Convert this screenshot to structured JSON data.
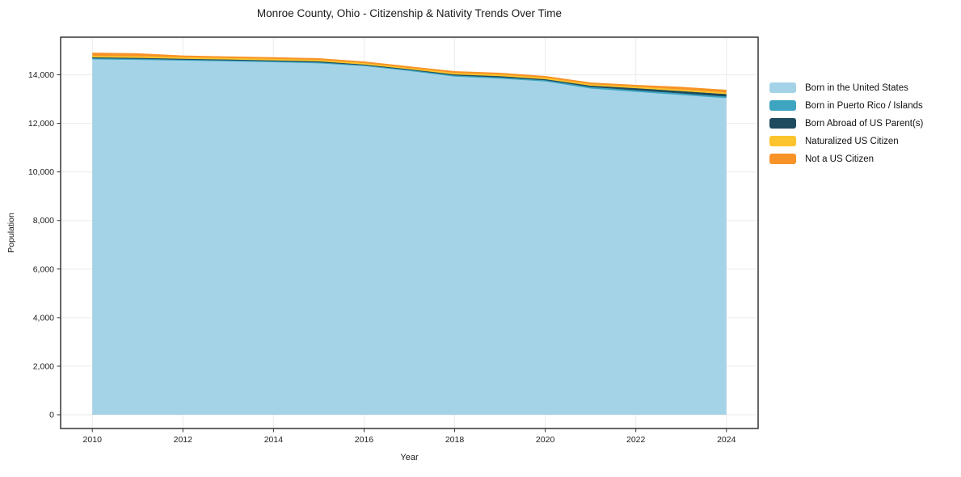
{
  "chart_data": {
    "type": "area",
    "stacked": true,
    "title": "Monroe County, Ohio - Citizenship & Nativity Trends Over Time",
    "xlabel": "Year",
    "ylabel": "Population",
    "x": [
      2010,
      2011,
      2012,
      2013,
      2014,
      2015,
      2016,
      2017,
      2018,
      2019,
      2020,
      2021,
      2022,
      2023,
      2024
    ],
    "series": [
      {
        "name": "Born in the United States",
        "color": "#a4d3e8",
        "values": [
          14660,
          14640,
          14610,
          14580,
          14545,
          14500,
          14380,
          14180,
          13950,
          13865,
          13750,
          13450,
          13315,
          13180,
          13050
        ]
      },
      {
        "name": "Born in Puerto Rico / Islands",
        "color": "#3ea5c0",
        "values": [
          5,
          5,
          5,
          5,
          5,
          5,
          10,
          10,
          10,
          10,
          10,
          15,
          15,
          20,
          20
        ]
      },
      {
        "name": "Born Abroad of US Parent(s)",
        "color": "#1f4b5f",
        "values": [
          45,
          45,
          40,
          40,
          40,
          40,
          35,
          40,
          45,
          50,
          50,
          70,
          90,
          95,
          100
        ]
      },
      {
        "name": "Naturalized US Citizen",
        "color": "#fcc42c",
        "values": [
          40,
          40,
          35,
          35,
          35,
          40,
          30,
          30,
          40,
          50,
          40,
          50,
          60,
          70,
          70
        ]
      },
      {
        "name": "Not a US Citizen",
        "color": "#f79327",
        "values": [
          130,
          125,
          70,
          65,
          65,
          65,
          60,
          55,
          70,
          75,
          65,
          65,
          70,
          105,
          110
        ]
      }
    ],
    "xticks": [
      2010,
      2012,
      2014,
      2016,
      2018,
      2020,
      2022,
      2024
    ],
    "yticks": [
      0,
      2000,
      4000,
      6000,
      8000,
      10000,
      12000,
      14000
    ],
    "xlim": [
      2009.3,
      2024.7
    ],
    "ylim": [
      -566,
      15548
    ],
    "grid": true,
    "legend_position": "right",
    "grid_color": "#ebebeb",
    "border_color": "#333333"
  }
}
